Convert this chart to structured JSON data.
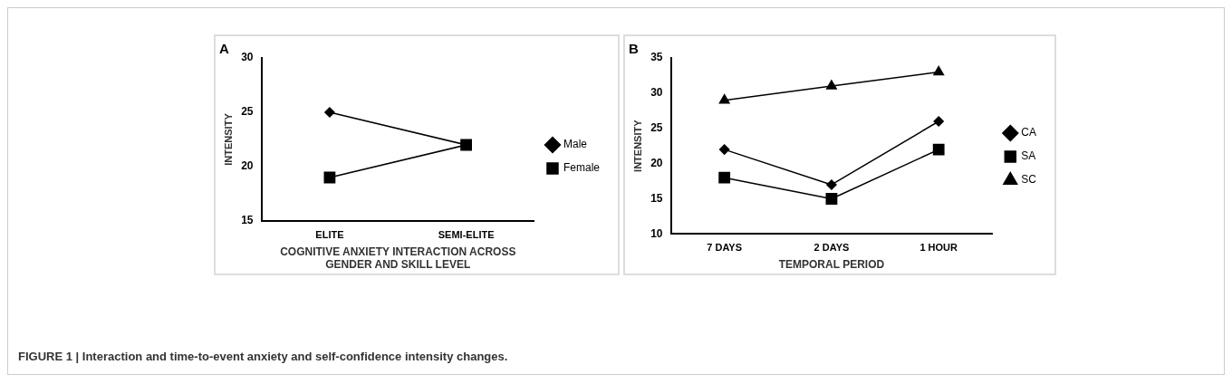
{
  "chart_data": [
    {
      "type": "line",
      "title": "A",
      "categories": [
        "ELITE",
        "SEMI-ELITE"
      ],
      "xlabel": "COGNITIVE ANXIETY INTERACTION ACROSS\nGENDER AND SKILL LEVEL",
      "ylabel": "INTENSITY",
      "ylim": [
        15,
        30
      ],
      "yticks": [
        15,
        20,
        25,
        30
      ],
      "grid": false,
      "legend": "right",
      "series": [
        {
          "name": "Male",
          "color": "#000000",
          "marker": "diamond",
          "values": [
            25,
            22
          ]
        },
        {
          "name": "Female",
          "color": "#000000",
          "marker": "square",
          "values": [
            19,
            22
          ]
        }
      ],
      "annotations": [
        "FIGURE 1 | Interaction and time-to-event anxiety and self-confidence intensity changes."
      ]
    },
    {
      "type": "line",
      "title": "B",
      "categories": [
        "7 DAYS",
        "2 DAYS",
        "1 HOUR"
      ],
      "xlabel": "TEMPORAL PERIOD",
      "ylabel": "INTENSITY",
      "ylim": [
        10,
        35
      ],
      "yticks": [
        10,
        15,
        20,
        25,
        30,
        35
      ],
      "grid": false,
      "legend": "right",
      "series": [
        {
          "name": "CA",
          "color": "#000000",
          "marker": "diamond",
          "values": [
            22,
            17,
            26
          ]
        },
        {
          "name": "SA",
          "color": "#000000",
          "marker": "square",
          "values": [
            18,
            15,
            22
          ]
        },
        {
          "name": "SC",
          "color": "#000000",
          "marker": "triangle",
          "values": [
            29,
            31,
            33
          ]
        }
      ]
    }
  ]
}
